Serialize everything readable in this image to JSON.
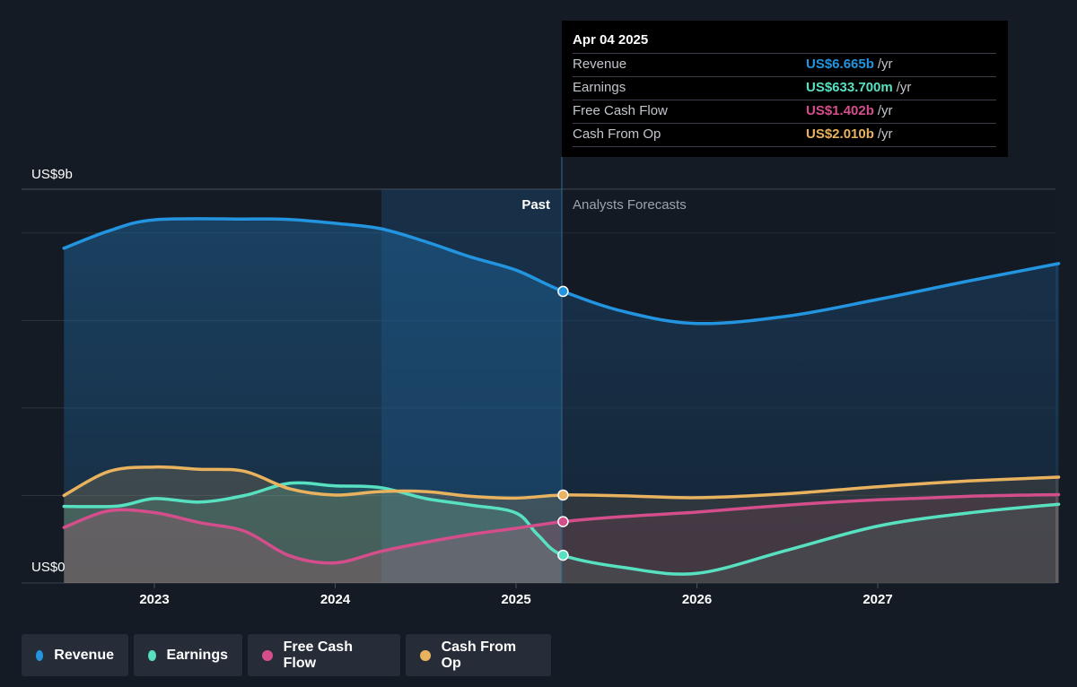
{
  "chart_data": {
    "type": "area",
    "y_max_label": "US$9b",
    "y_min_label": "US$0",
    "ylim": [
      0,
      9
    ],
    "x_ticks": [
      "2023",
      "2024",
      "2025",
      "2026",
      "2027"
    ],
    "past_label": "Past",
    "forecast_label": "Analysts Forecasts",
    "series": [
      {
        "name": "Revenue",
        "color": "#2394df",
        "x": [
          2022.5,
          2022.75,
          2023.0,
          2023.5,
          2023.75,
          2024.0,
          2024.25,
          2024.5,
          2024.75,
          2025.0,
          2025.26,
          2025.6,
          2026.0,
          2026.5,
          2027.0,
          2027.5,
          2028.0
        ],
        "values": [
          7.65,
          8.05,
          8.3,
          8.32,
          8.31,
          8.22,
          8.1,
          7.8,
          7.45,
          7.15,
          6.665,
          6.2,
          5.93,
          6.1,
          6.48,
          6.9,
          7.3
        ]
      },
      {
        "name": "Earnings",
        "color": "#58e1c1",
        "x": [
          2022.5,
          2022.8,
          2023.0,
          2023.25,
          2023.5,
          2023.75,
          2024.0,
          2024.25,
          2024.5,
          2024.75,
          2025.0,
          2025.12,
          2025.26,
          2025.6,
          2026.0,
          2026.5,
          2027.0,
          2027.5,
          2028.0
        ],
        "values": [
          1.75,
          1.76,
          1.93,
          1.85,
          2.0,
          2.28,
          2.22,
          2.18,
          1.93,
          1.78,
          1.6,
          1.1,
          0.634,
          0.35,
          0.22,
          0.75,
          1.3,
          1.6,
          1.8
        ]
      },
      {
        "name": "Free Cash Flow",
        "color": "#d44e8c",
        "x": [
          2022.5,
          2022.75,
          2023.0,
          2023.25,
          2023.5,
          2023.75,
          2024.0,
          2024.25,
          2024.5,
          2024.75,
          2025.0,
          2025.26,
          2025.6,
          2026.0,
          2026.5,
          2027.0,
          2027.5,
          2028.0
        ],
        "values": [
          1.27,
          1.65,
          1.61,
          1.38,
          1.18,
          0.62,
          0.46,
          0.72,
          0.93,
          1.11,
          1.25,
          1.402,
          1.52,
          1.62,
          1.78,
          1.9,
          1.98,
          2.02
        ]
      },
      {
        "name": "Cash From Op",
        "color": "#e9b25e",
        "x": [
          2022.5,
          2022.75,
          2023.0,
          2023.25,
          2023.5,
          2023.75,
          2024.0,
          2024.25,
          2024.5,
          2024.75,
          2025.0,
          2025.26,
          2025.6,
          2026.0,
          2026.5,
          2027.0,
          2027.5,
          2028.0
        ],
        "values": [
          2.0,
          2.55,
          2.65,
          2.6,
          2.55,
          2.15,
          2.01,
          2.09,
          2.09,
          1.98,
          1.94,
          2.01,
          1.99,
          1.95,
          2.04,
          2.2,
          2.33,
          2.42
        ]
      }
    ],
    "tooltip": {
      "date": "Apr 04 2025",
      "rows": [
        {
          "label": "Revenue",
          "value": "US$6.665b",
          "unit": "/yr",
          "color": "#2394df"
        },
        {
          "label": "Earnings",
          "value": "US$633.700m",
          "unit": "/yr",
          "color": "#58e1c1"
        },
        {
          "label": "Free Cash Flow",
          "value": "US$1.402b",
          "unit": "/yr",
          "color": "#d44e8c"
        },
        {
          "label": "Cash From Op",
          "value": "US$2.010b",
          "unit": "/yr",
          "color": "#e9b25e"
        }
      ]
    },
    "legend": [
      "Revenue",
      "Earnings",
      "Free Cash Flow",
      "Cash From Op"
    ],
    "grid": true
  }
}
